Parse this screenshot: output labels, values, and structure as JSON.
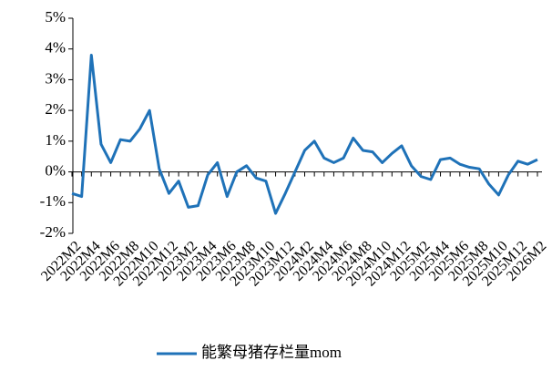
{
  "chart_data": {
    "type": "line",
    "categories": [
      "2022M2",
      null,
      "2022M4",
      null,
      "2022M6",
      null,
      "2022M8",
      null,
      "2022M10",
      null,
      "2022M12",
      null,
      "2023M2",
      null,
      "2023M4",
      null,
      "2023M6",
      null,
      "2023M8",
      null,
      "2023M10",
      null,
      "2023M12",
      null,
      "2024M2",
      null,
      "2024M4",
      null,
      "2024M6",
      null,
      "2024M8",
      null,
      "2024M10",
      null,
      "2024M12",
      null,
      "2025M2",
      null,
      "2025M4",
      null,
      "2025M6",
      null,
      "2025M8",
      null,
      "2025M10",
      null,
      "2025M12",
      null,
      "2026M2"
    ],
    "series": [
      {
        "name": "能繁母猪存栏量mom",
        "color": "#1f72b8",
        "values": [
          -0.7,
          -0.8,
          3.8,
          0.9,
          0.3,
          1.05,
          1.0,
          1.4,
          2.0,
          0.1,
          -0.7,
          -0.3,
          -1.15,
          -1.1,
          -0.1,
          0.3,
          -0.8,
          0.0,
          0.2,
          -0.2,
          -0.3,
          -1.35,
          -0.7,
          0.0,
          0.7,
          1.0,
          0.45,
          0.3,
          0.45,
          1.1,
          0.7,
          0.65,
          0.3,
          0.6,
          0.85,
          0.2,
          -0.15,
          -0.25,
          0.4,
          0.45,
          0.25,
          0.15,
          0.1,
          -0.4,
          -0.75,
          -0.1,
          0.35,
          0.25,
          0.4
        ]
      }
    ],
    "ylim": [
      -2,
      5
    ],
    "yticks": [
      {
        "value": -2,
        "label": "-2%"
      },
      {
        "value": -1,
        "label": "-1%"
      },
      {
        "value": 0,
        "label": "0%"
      },
      {
        "value": 1,
        "label": "1%"
      },
      {
        "value": 2,
        "label": "2%"
      },
      {
        "value": 3,
        "label": "3%"
      },
      {
        "value": 4,
        "label": "4%"
      },
      {
        "value": 5,
        "label": "5%"
      }
    ],
    "legend": "bottom"
  }
}
